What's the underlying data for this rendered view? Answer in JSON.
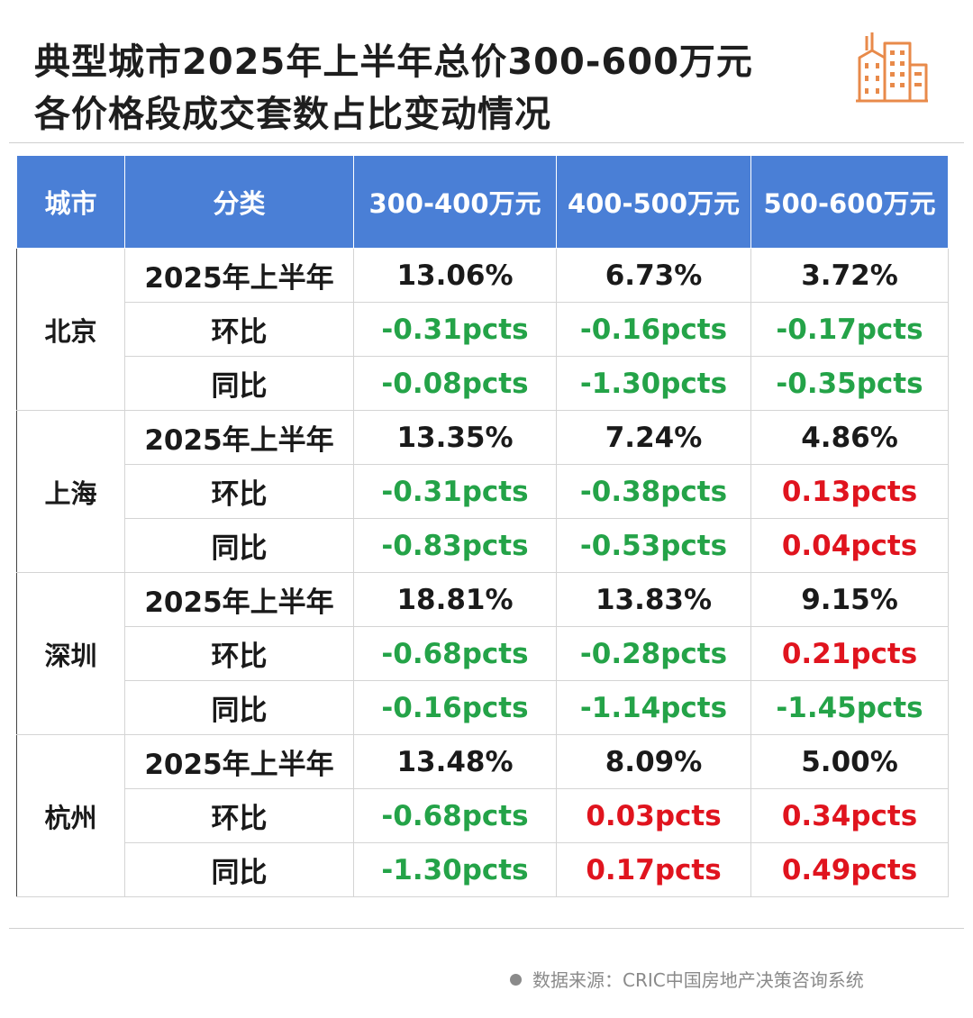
{
  "title": {
    "line1": "典型城市2025年上半年总价300-600万元",
    "line2": "各价格段成交套数占比变动情况"
  },
  "colors": {
    "header_bg": "#4a7fd6",
    "negative": "#24a348",
    "positive": "#e0141e",
    "logo": "#e88a4a"
  },
  "logo_icon": "buildings-icon",
  "table": {
    "headers": [
      "城市",
      "分类",
      "300-400万元",
      "400-500万元",
      "500-600万元"
    ],
    "cities": [
      {
        "name": "北京",
        "rows": [
          {
            "label": "2025年上半年",
            "values": [
              "13.06%",
              "6.73%",
              "3.72%"
            ],
            "tones": [
              "plain",
              "plain",
              "plain"
            ]
          },
          {
            "label": "环比",
            "values": [
              "-0.31pcts",
              "-0.16pcts",
              "-0.17pcts"
            ],
            "tones": [
              "neg",
              "neg",
              "neg"
            ]
          },
          {
            "label": "同比",
            "values": [
              "-0.08pcts",
              "-1.30pcts",
              "-0.35pcts"
            ],
            "tones": [
              "neg",
              "neg",
              "neg"
            ]
          }
        ]
      },
      {
        "name": "上海",
        "rows": [
          {
            "label": "2025年上半年",
            "values": [
              "13.35%",
              "7.24%",
              "4.86%"
            ],
            "tones": [
              "plain",
              "plain",
              "plain"
            ]
          },
          {
            "label": "环比",
            "values": [
              "-0.31pcts",
              "-0.38pcts",
              "0.13pcts"
            ],
            "tones": [
              "neg",
              "neg",
              "pos"
            ]
          },
          {
            "label": "同比",
            "values": [
              "-0.83pcts",
              "-0.53pcts",
              "0.04pcts"
            ],
            "tones": [
              "neg",
              "neg",
              "pos"
            ]
          }
        ]
      },
      {
        "name": "深圳",
        "rows": [
          {
            "label": "2025年上半年",
            "values": [
              "18.81%",
              "13.83%",
              "9.15%"
            ],
            "tones": [
              "plain",
              "plain",
              "plain"
            ]
          },
          {
            "label": "环比",
            "values": [
              "-0.68pcts",
              "-0.28pcts",
              "0.21pcts"
            ],
            "tones": [
              "neg",
              "neg",
              "pos"
            ]
          },
          {
            "label": "同比",
            "values": [
              "-0.16pcts",
              "-1.14pcts",
              "-1.45pcts"
            ],
            "tones": [
              "neg",
              "neg",
              "neg"
            ]
          }
        ]
      },
      {
        "name": "杭州",
        "rows": [
          {
            "label": "2025年上半年",
            "values": [
              "13.48%",
              "8.09%",
              "5.00%"
            ],
            "tones": [
              "plain",
              "plain",
              "plain"
            ]
          },
          {
            "label": "环比",
            "values": [
              "-0.68pcts",
              "0.03pcts",
              "0.34pcts"
            ],
            "tones": [
              "neg",
              "pos",
              "pos"
            ]
          },
          {
            "label": "同比",
            "values": [
              "-1.30pcts",
              "0.17pcts",
              "0.49pcts"
            ],
            "tones": [
              "neg",
              "pos",
              "pos"
            ]
          }
        ]
      }
    ]
  },
  "source": "数据来源：CRIC中国房地产决策咨询系统"
}
